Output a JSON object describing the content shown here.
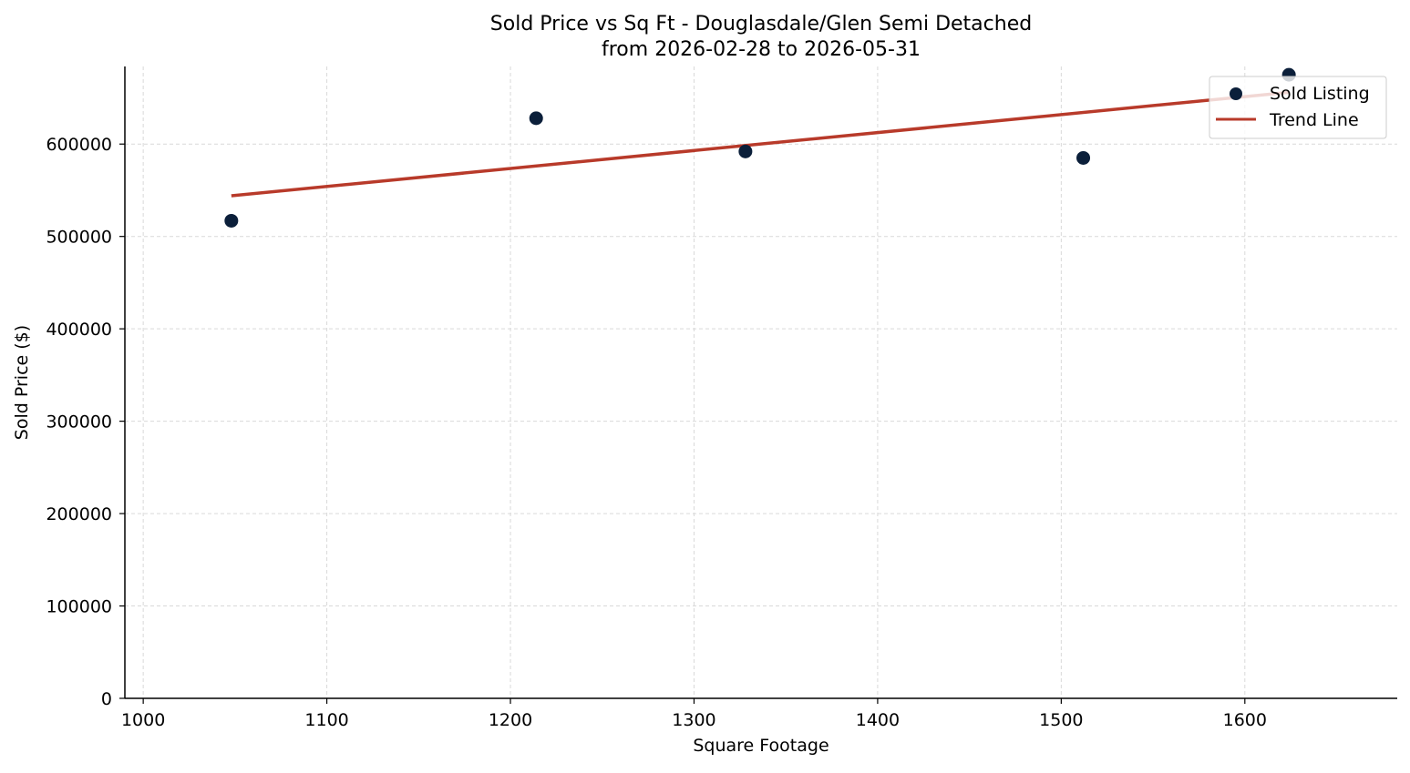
{
  "chart_data": {
    "type": "scatter",
    "title": "Sold Price vs Sq Ft - Douglasdale/Glen Semi Detached",
    "subtitle": "from 2026-02-28 to 2026-05-31",
    "xlabel": "Square Footage",
    "ylabel": "Sold Price ($)",
    "xlim": [
      990,
      1683
    ],
    "ylim": [
      0,
      684000
    ],
    "x_ticks": [
      1000,
      1100,
      1200,
      1300,
      1400,
      1500,
      1600
    ],
    "y_ticks": [
      0,
      100000,
      200000,
      300000,
      400000,
      500000,
      600000
    ],
    "grid": true,
    "legend_position": "upper right",
    "series": [
      {
        "name": "Sold Listing",
        "kind": "scatter",
        "color": "#0b1f3a",
        "points": [
          {
            "x": 1048,
            "y": 517000
          },
          {
            "x": 1214,
            "y": 628000
          },
          {
            "x": 1328,
            "y": 592000
          },
          {
            "x": 1512,
            "y": 585000
          },
          {
            "x": 1624,
            "y": 675000
          }
        ]
      },
      {
        "name": "Trend Line",
        "kind": "line",
        "color": "#b83a2a",
        "points": [
          {
            "x": 1048,
            "y": 544000
          },
          {
            "x": 1624,
            "y": 656000
          }
        ]
      }
    ]
  }
}
